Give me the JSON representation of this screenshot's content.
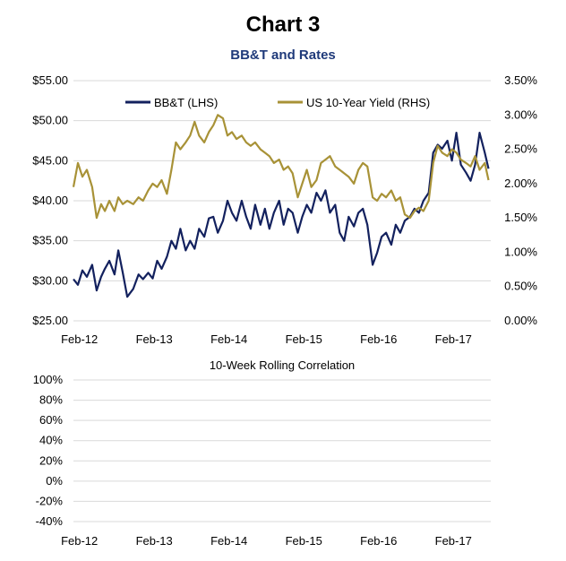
{
  "title": "Chart 3",
  "subtitle": "BB&T and Rates",
  "colors": {
    "bbt": "#13215e",
    "yield": "#a89237",
    "grid": "#d9d9d9"
  },
  "chart_data": [
    {
      "type": "line",
      "title": "",
      "x_tick_labels": [
        "Feb-12",
        "Feb-13",
        "Feb-14",
        "Feb-15",
        "Feb-16",
        "Feb-17"
      ],
      "xlim": [
        2012.0,
        2017.58
      ],
      "x_ticks": [
        2012.08,
        2013.08,
        2014.08,
        2015.08,
        2016.08,
        2017.08
      ],
      "left_axis": {
        "ylim": [
          25,
          55
        ],
        "ticks": [
          "$25.00",
          "$30.00",
          "$35.00",
          "$40.00",
          "$45.00",
          "$50.00",
          "$55.00"
        ]
      },
      "right_axis": {
        "ylim": [
          0,
          3.5
        ],
        "ticks": [
          "0.00%",
          "0.50%",
          "1.00%",
          "1.50%",
          "2.00%",
          "2.50%",
          "3.00%",
          "3.50%"
        ]
      },
      "legend_position": "top",
      "series": [
        {
          "name": "BB&T (LHS)",
          "axis": "left",
          "x": [
            2012.0,
            2012.06,
            2012.12,
            2012.18,
            2012.25,
            2012.31,
            2012.37,
            2012.42,
            2012.48,
            2012.55,
            2012.6,
            2012.66,
            2012.72,
            2012.8,
            2012.87,
            2012.93,
            2013.0,
            2013.06,
            2013.12,
            2013.18,
            2013.25,
            2013.31,
            2013.37,
            2013.43,
            2013.5,
            2013.56,
            2013.62,
            2013.68,
            2013.75,
            2013.81,
            2013.87,
            2013.93,
            2014.0,
            2014.06,
            2014.12,
            2014.18,
            2014.25,
            2014.31,
            2014.37,
            2014.43,
            2014.5,
            2014.56,
            2014.62,
            2014.68,
            2014.75,
            2014.81,
            2014.87,
            2014.93,
            2015.0,
            2015.06,
            2015.12,
            2015.18,
            2015.25,
            2015.31,
            2015.37,
            2015.43,
            2015.5,
            2015.56,
            2015.62,
            2015.68,
            2015.75,
            2015.81,
            2015.87,
            2015.93,
            2016.0,
            2016.06,
            2016.12,
            2016.18,
            2016.25,
            2016.31,
            2016.37,
            2016.43,
            2016.5,
            2016.56,
            2016.62,
            2016.68,
            2016.75,
            2016.81,
            2016.87,
            2016.93,
            2017.0,
            2017.06,
            2017.12,
            2017.18,
            2017.25,
            2017.31,
            2017.37,
            2017.43,
            2017.5,
            2017.55
          ],
          "values": [
            30.2,
            29.5,
            31.3,
            30.5,
            32.0,
            28.8,
            30.5,
            31.5,
            32.5,
            30.8,
            33.8,
            31.0,
            28.0,
            29.0,
            30.8,
            30.2,
            31.0,
            30.3,
            32.5,
            31.5,
            33.0,
            35.0,
            34.0,
            36.5,
            33.8,
            35.0,
            34.0,
            36.5,
            35.5,
            37.8,
            38.0,
            36.0,
            37.5,
            40.0,
            38.5,
            37.5,
            40.0,
            38.0,
            36.5,
            39.5,
            37.0,
            39.0,
            36.5,
            38.5,
            40.0,
            37.0,
            39.0,
            38.5,
            36.0,
            38.0,
            39.5,
            38.5,
            41.0,
            40.0,
            41.3,
            38.5,
            39.5,
            36.0,
            35.0,
            38.0,
            36.8,
            38.5,
            39.0,
            37.0,
            32.0,
            33.5,
            35.5,
            36.0,
            34.5,
            37.0,
            36.0,
            37.5,
            38.0,
            39.0,
            38.5,
            40.0,
            41.0,
            46.0,
            47.0,
            46.5,
            47.5,
            45.0,
            48.5,
            44.5,
            43.5,
            42.5,
            44.5,
            48.5,
            46.0,
            44.0
          ]
        },
        {
          "name": "US 10-Year Yield (RHS)",
          "axis": "right",
          "x": [
            2012.0,
            2012.06,
            2012.12,
            2012.18,
            2012.25,
            2012.31,
            2012.37,
            2012.42,
            2012.48,
            2012.55,
            2012.6,
            2012.66,
            2012.72,
            2012.8,
            2012.87,
            2012.93,
            2013.0,
            2013.06,
            2013.12,
            2013.18,
            2013.25,
            2013.31,
            2013.37,
            2013.43,
            2013.5,
            2013.56,
            2013.62,
            2013.68,
            2013.75,
            2013.81,
            2013.87,
            2013.93,
            2014.0,
            2014.06,
            2014.12,
            2014.18,
            2014.25,
            2014.31,
            2014.37,
            2014.43,
            2014.5,
            2014.56,
            2014.62,
            2014.68,
            2014.75,
            2014.81,
            2014.87,
            2014.93,
            2015.0,
            2015.06,
            2015.12,
            2015.18,
            2015.25,
            2015.31,
            2015.37,
            2015.43,
            2015.5,
            2015.56,
            2015.62,
            2015.68,
            2015.75,
            2015.81,
            2015.87,
            2015.93,
            2016.0,
            2016.06,
            2016.12,
            2016.18,
            2016.25,
            2016.31,
            2016.37,
            2016.43,
            2016.5,
            2016.56,
            2016.62,
            2016.68,
            2016.75,
            2016.81,
            2016.87,
            2016.93,
            2017.0,
            2017.06,
            2017.12,
            2017.18,
            2017.25,
            2017.31,
            2017.37,
            2017.43,
            2017.5,
            2017.55
          ],
          "values": [
            1.95,
            2.3,
            2.1,
            2.2,
            1.95,
            1.5,
            1.7,
            1.6,
            1.75,
            1.6,
            1.8,
            1.7,
            1.75,
            1.7,
            1.8,
            1.75,
            1.9,
            2.0,
            1.95,
            2.05,
            1.85,
            2.2,
            2.6,
            2.5,
            2.6,
            2.7,
            2.9,
            2.7,
            2.6,
            2.75,
            2.85,
            3.0,
            2.95,
            2.7,
            2.75,
            2.65,
            2.7,
            2.6,
            2.55,
            2.6,
            2.5,
            2.45,
            2.4,
            2.3,
            2.35,
            2.2,
            2.25,
            2.15,
            1.8,
            2.0,
            2.2,
            1.95,
            2.05,
            2.3,
            2.35,
            2.4,
            2.25,
            2.2,
            2.15,
            2.1,
            2.0,
            2.2,
            2.3,
            2.25,
            1.8,
            1.75,
            1.85,
            1.8,
            1.9,
            1.75,
            1.8,
            1.55,
            1.5,
            1.6,
            1.65,
            1.6,
            1.75,
            2.3,
            2.55,
            2.45,
            2.4,
            2.5,
            2.45,
            2.35,
            2.3,
            2.25,
            2.4,
            2.2,
            2.3,
            2.05
          ]
        }
      ]
    },
    {
      "type": "line",
      "title": "10-Week Rolling Correlation",
      "x_tick_labels": [
        "Feb-12",
        "Feb-13",
        "Feb-14",
        "Feb-15",
        "Feb-16",
        "Feb-17"
      ],
      "ylim": [
        -40,
        100
      ],
      "y_tick_labels": [
        "-40%",
        "-20%",
        "0%",
        "20%",
        "40%",
        "60%",
        "80%",
        "100%"
      ],
      "series": []
    }
  ]
}
